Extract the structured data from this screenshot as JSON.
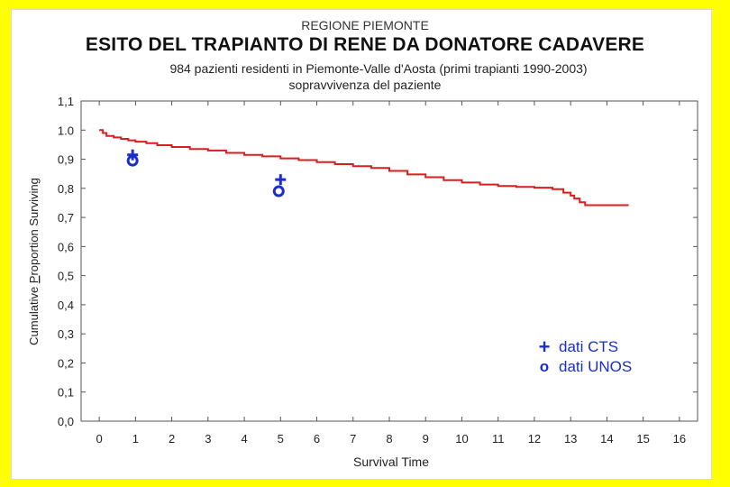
{
  "chart_data": {
    "type": "line",
    "title": "ESITO DEL TRAPIANTO DI RENE DA DONATORE CADAVERE",
    "supertitle": "REGIONE PIEMONTE",
    "subtitle_line1": "984 pazienti residenti in Piemonte-Valle d'Aosta (primi trapianti 1990-2003)",
    "subtitle_line2": "sopravvivenza del paziente",
    "xlabel": "Survival Time",
    "ylabel_prefix": "Cumulative ",
    "ylabel_highlight": "P",
    "ylabel_suffix": "roportion Surviving",
    "xlim": [
      -0.5,
      16.5
    ],
    "ylim": [
      0.0,
      1.1
    ],
    "x_ticks": [
      "0",
      "1",
      "2",
      "3",
      "4",
      "5",
      "6",
      "7",
      "8",
      "9",
      "10",
      "11",
      "12",
      "13",
      "14",
      "15",
      "16"
    ],
    "y_ticks": [
      {
        "v": 0.0,
        "label": "0,0"
      },
      {
        "v": 0.1,
        "label": "0,1"
      },
      {
        "v": 0.2,
        "label": "0,2"
      },
      {
        "v": 0.3,
        "label": "0,3"
      },
      {
        "v": 0.4,
        "label": "0,4"
      },
      {
        "v": 0.5,
        "label": "0,5"
      },
      {
        "v": 0.6,
        "label": "0,6"
      },
      {
        "v": 0.7,
        "label": "0,7"
      },
      {
        "v": 0.8,
        "label": "0,8"
      },
      {
        "v": 0.9,
        "label": "0,9"
      },
      {
        "v": 1.0,
        "label": "1.0"
      },
      {
        "v": 1.1,
        "label": "1,1"
      }
    ],
    "series": [
      {
        "name": "sopravvivenza",
        "color": "#d81e1e",
        "step": true,
        "x": [
          0,
          0.1,
          0.2,
          0.4,
          0.6,
          0.8,
          1.0,
          1.3,
          1.6,
          2.0,
          2.5,
          3.0,
          3.5,
          4.0,
          4.5,
          5.0,
          5.5,
          6.0,
          6.5,
          7.0,
          7.5,
          8.0,
          8.5,
          9.0,
          9.5,
          10.0,
          10.5,
          11.0,
          11.5,
          12.0,
          12.5,
          12.8,
          13.0,
          13.1,
          13.25,
          13.4,
          14.0,
          14.6
        ],
        "y": [
          1.0,
          0.99,
          0.98,
          0.975,
          0.97,
          0.965,
          0.96,
          0.955,
          0.948,
          0.942,
          0.935,
          0.93,
          0.922,
          0.915,
          0.91,
          0.903,
          0.897,
          0.89,
          0.883,
          0.876,
          0.87,
          0.86,
          0.848,
          0.838,
          0.828,
          0.82,
          0.813,
          0.808,
          0.805,
          0.802,
          0.797,
          0.785,
          0.775,
          0.765,
          0.752,
          0.742,
          0.742,
          0.742
        ]
      }
    ],
    "markers": [
      {
        "name": "dati CTS",
        "symbol": "+",
        "color": "#1a2ecc",
        "points": [
          {
            "x": 0.92,
            "y": 0.915
          },
          {
            "x": 5.0,
            "y": 0.83
          }
        ]
      },
      {
        "name": "dati UNOS",
        "symbol": "o",
        "color": "#1a2ecc",
        "points": [
          {
            "x": 0.92,
            "y": 0.895
          },
          {
            "x": 4.95,
            "y": 0.79
          }
        ]
      }
    ],
    "legend": {
      "placement": "bottom-right",
      "cts_symbol": "+",
      "cts_label": "dati CTS",
      "unos_symbol": "o",
      "unos_label": "dati UNOS"
    }
  }
}
